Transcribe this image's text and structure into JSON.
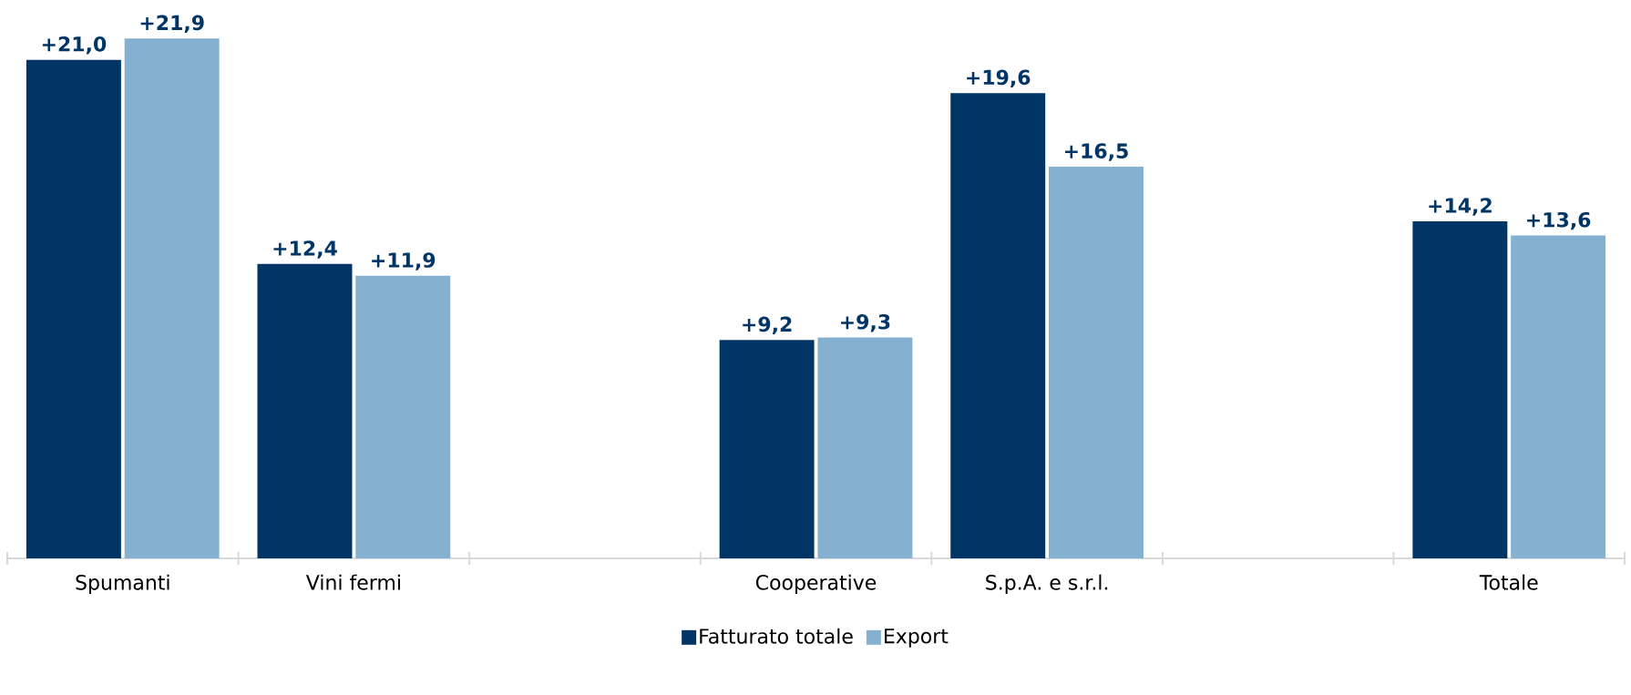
{
  "chart_data": {
    "type": "bar",
    "categories": [
      "Spumanti",
      "Vini fermi",
      null,
      "Cooperative",
      "S.p.A. e s.r.l.",
      null,
      "Totale"
    ],
    "series": [
      {
        "name": "Fatturato totale",
        "color": "#003566",
        "values": [
          21.0,
          12.4,
          null,
          9.2,
          19.6,
          null,
          14.2
        ],
        "value_labels": [
          "+21,0",
          "+12,4",
          null,
          "+9,2",
          "+19,6",
          null,
          "+14,2"
        ]
      },
      {
        "name": "Export",
        "color": "#84b1cf",
        "values": [
          21.9,
          11.9,
          null,
          9.3,
          16.5,
          null,
          13.6
        ],
        "value_labels": [
          "+21,9",
          "+11,9",
          null,
          "+9,3",
          "+16,5",
          null,
          "+13,6"
        ]
      }
    ],
    "legend": "bottom",
    "grid": false
  }
}
